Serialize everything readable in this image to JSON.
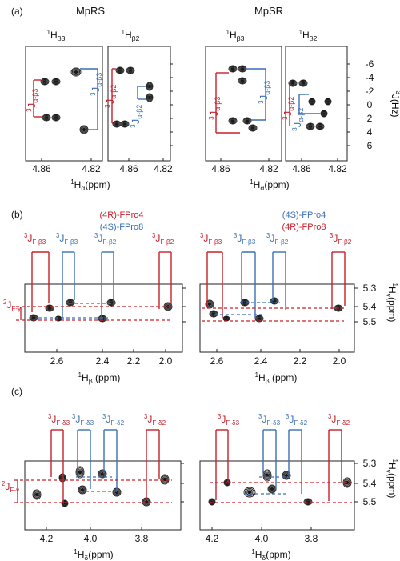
{
  "panel_labels": [
    "(a)",
    "(b)",
    "(c)"
  ],
  "colors": {
    "red": "#c8202a",
    "blue": "#3a6fb5",
    "axis": "#222222",
    "contour": "#1a1a1a"
  },
  "panel_a": {
    "left_title": "MpRS",
    "right_title": "MpSR",
    "col_b3": "1Hβ3",
    "col_b2": "1Hβ2",
    "ticks_x_left": [
      "4.86",
      "4.82"
    ],
    "ticks_x_right": [
      "4.86",
      "4.82"
    ],
    "xlabel": "1Hα(ppm)",
    "yticks": [
      "-6",
      "-4",
      "-2",
      "0",
      "2",
      "4",
      "6"
    ],
    "ylabel": "3J(Hz)",
    "label_b3": "3Jα-β3",
    "label_b2": "3Jα-β2"
  },
  "panel_b": {
    "legend_left": [
      "(4R)-FPro4",
      "(4S)-FPro8"
    ],
    "legend_right": [
      "(4S)-FPro4",
      "(4R)-FPro8"
    ],
    "labels": [
      "3JF-β3",
      "3JF-β3",
      "3JF-β2",
      "3JF-β2"
    ],
    "label_gem": "2JF-γ",
    "xticks": [
      "2.6",
      "2.4",
      "2.2",
      "2.0"
    ],
    "yticks": [
      "5.3",
      "5.4",
      "5.5"
    ],
    "xlabel": "1Hβ (ppm)",
    "ylabel": "1Hγ(ppm)"
  },
  "panel_c": {
    "labels": [
      "3JF-δ3",
      "3JF-δ3",
      "3JF-δ2",
      "3JF-δ2"
    ],
    "label_gem": "2JF-γ",
    "xticks": [
      "4.2",
      "4.0",
      "3.8"
    ],
    "yticks": [
      "5.3",
      "5.4",
      "5.5"
    ],
    "xlabel": "1Hδ(ppm)",
    "ylabel": "1Hγ(ppm)"
  }
}
